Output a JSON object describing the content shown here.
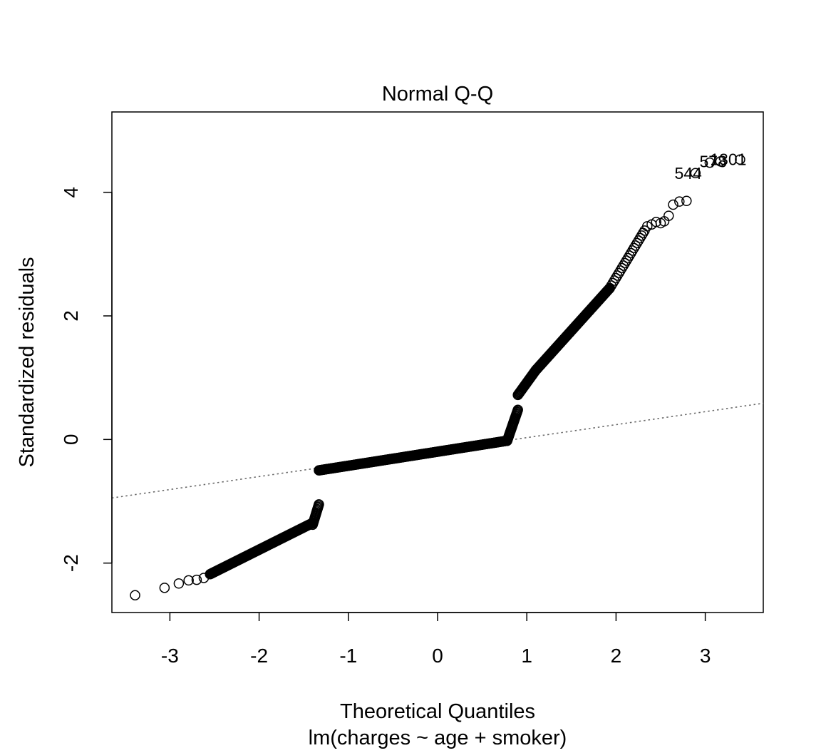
{
  "chart_data": {
    "type": "scatter",
    "title": "Normal Q-Q",
    "xlabel": "Theoretical Quantiles",
    "subtitle": "lm(charges ~ age + smoker)",
    "ylabel": "Standardized residuals",
    "xlim": [
      -3.65,
      3.65
    ],
    "ylim": [
      -2.8,
      5.3
    ],
    "xticks": [
      -3,
      -2,
      -1,
      0,
      1,
      2,
      3
    ],
    "yticks": [
      -2,
      0,
      2,
      4
    ],
    "grid": false,
    "legend": "none",
    "reference_line": {
      "intercept": -0.18,
      "slope": 0.21,
      "style": "dotted",
      "color": "#6a6a6a"
    },
    "point_labels": [
      {
        "text": "1301",
        "x": 3.39,
        "y": 4.53
      },
      {
        "text": "578",
        "x": 3.17,
        "y": 4.5
      },
      {
        "text": "544",
        "x": 2.89,
        "y": 4.31
      }
    ],
    "segments": [
      {
        "x_from": -2.55,
        "x_to": -1.4,
        "y_from": -2.18,
        "y_to": -1.35,
        "n": 180
      },
      {
        "x_from": -1.4,
        "x_to": -1.33,
        "y_from": -1.38,
        "y_to": -1.05,
        "n": 18
      },
      {
        "x_from": -1.33,
        "x_to": 0.78,
        "y_from": -0.5,
        "y_to": -0.02,
        "n": 260
      },
      {
        "x_from": 0.78,
        "x_to": 0.9,
        "y_from": -0.02,
        "y_to": 0.48,
        "n": 30
      },
      {
        "x_from": 0.9,
        "x_to": 1.1,
        "y_from": 0.72,
        "y_to": 1.12,
        "n": 30
      },
      {
        "x_from": 1.1,
        "x_to": 1.93,
        "y_from": 1.12,
        "y_to": 2.45,
        "n": 190
      },
      {
        "x_from": 1.93,
        "x_to": 2.32,
        "y_from": 2.45,
        "y_to": 3.38,
        "n": 24
      }
    ],
    "points": [
      {
        "x": -3.39,
        "y": -2.52
      },
      {
        "x": -3.06,
        "y": -2.4
      },
      {
        "x": -2.9,
        "y": -2.33
      },
      {
        "x": -2.79,
        "y": -2.28
      },
      {
        "x": -2.7,
        "y": -2.27
      },
      {
        "x": -2.62,
        "y": -2.24
      },
      {
        "x": 2.35,
        "y": 3.45
      },
      {
        "x": 2.4,
        "y": 3.48
      },
      {
        "x": 2.45,
        "y": 3.52
      },
      {
        "x": 2.5,
        "y": 3.5
      },
      {
        "x": 2.54,
        "y": 3.53
      },
      {
        "x": 2.59,
        "y": 3.62
      },
      {
        "x": 2.64,
        "y": 3.8
      },
      {
        "x": 2.71,
        "y": 3.85
      },
      {
        "x": 2.79,
        "y": 3.86
      },
      {
        "x": 2.89,
        "y": 4.31
      },
      {
        "x": 3.05,
        "y": 4.48
      },
      {
        "x": 3.17,
        "y": 4.5
      },
      {
        "x": 3.39,
        "y": 4.53
      }
    ]
  }
}
